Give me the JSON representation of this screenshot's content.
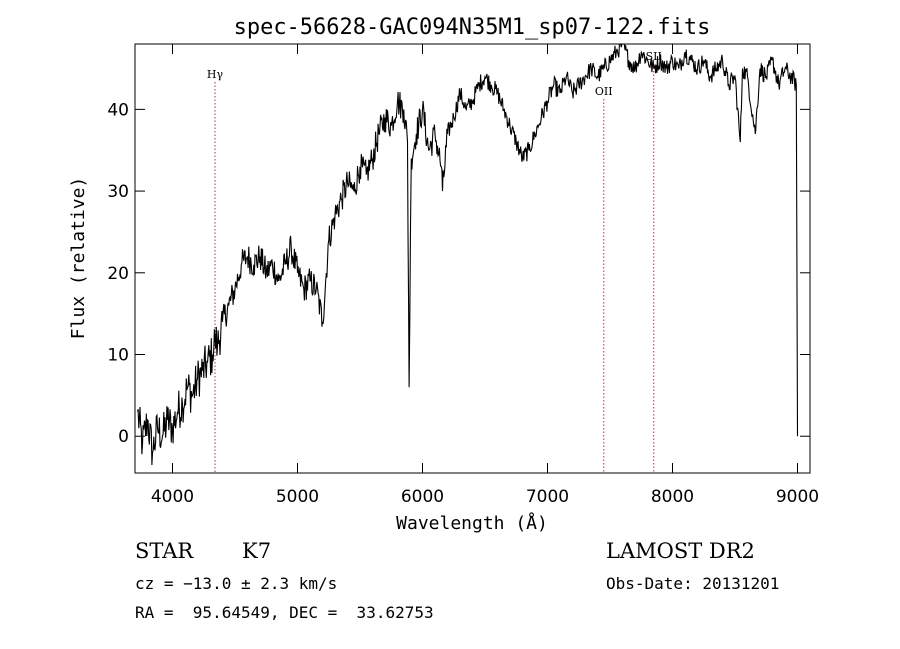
{
  "chart_data": {
    "type": "line",
    "title": "spec-56628-GAC094N35M1_sp07-122.fits",
    "xlabel": "Wavelength (Å)",
    "ylabel": "Flux (relative)",
    "xlim": [
      3700,
      9100
    ],
    "ylim": [
      -4.5,
      48
    ],
    "x_ticks": [
      4000,
      5000,
      6000,
      7000,
      8000,
      9000
    ],
    "y_ticks": [
      0,
      10,
      20,
      30,
      40
    ],
    "grid": false,
    "spectral_lines": [
      {
        "name": "Hγ",
        "wavelength": 4340
      },
      {
        "name": "OII",
        "wavelength": 7450
      },
      {
        "name": "SII",
        "wavelength": 7850
      }
    ],
    "series": [
      {
        "x": [
          3720,
          3760,
          3800,
          3840,
          3880,
          3920,
          3960,
          4000,
          4040,
          4080,
          4120,
          4160,
          4200,
          4240,
          4280,
          4320,
          4340,
          4360,
          4400,
          4450,
          4500,
          4550,
          4600,
          4650,
          4700,
          4750,
          4800,
          4850,
          4900,
          4950,
          5000,
          5050,
          5100,
          5150,
          5200,
          5250,
          5300,
          5350,
          5400,
          5450,
          5500,
          5550,
          5600,
          5650,
          5700,
          5750,
          5800,
          5850,
          5880,
          5893,
          5910,
          5950,
          6000,
          6050,
          6100,
          6150,
          6160,
          6200,
          6250,
          6300,
          6350,
          6400,
          6450,
          6500,
          6550,
          6600,
          6650,
          6700,
          6750,
          6800,
          6850,
          6900,
          6950,
          7000,
          7050,
          7100,
          7150,
          7200,
          7250,
          7300,
          7350,
          7400,
          7450,
          7500,
          7550,
          7600,
          7650,
          7700,
          7750,
          7800,
          7850,
          7900,
          7950,
          8000,
          8050,
          8100,
          8150,
          8200,
          8250,
          8300,
          8350,
          8400,
          8450,
          8500,
          8542,
          8560,
          8600,
          8662,
          8700,
          8750,
          8800,
          8850,
          8900,
          8950,
          8990,
          9000
        ],
        "y": [
          3,
          -1,
          2,
          -2,
          1,
          0,
          2,
          1,
          3,
          4,
          6,
          5,
          7,
          8,
          9,
          10,
          12,
          11,
          14,
          16,
          18,
          21,
          22,
          21,
          22,
          20,
          21,
          19,
          21,
          23,
          20,
          18,
          19,
          18,
          14,
          24,
          27,
          29,
          31,
          30,
          33,
          32,
          34,
          37,
          39,
          38,
          41,
          40,
          36,
          6,
          34,
          37,
          40,
          35,
          37,
          33,
          30,
          37,
          39,
          42,
          40,
          41,
          43,
          44,
          43,
          42,
          40,
          38,
          36,
          34,
          35,
          37,
          39,
          41,
          43,
          42,
          44,
          42,
          43,
          44,
          45,
          44,
          45,
          46,
          47,
          48,
          46,
          45,
          47,
          46,
          45,
          46,
          45,
          46,
          45,
          47,
          46,
          45,
          46,
          44,
          45,
          46,
          43,
          44,
          36,
          45,
          44,
          37,
          45,
          44,
          46,
          43,
          45,
          44,
          43,
          0
        ]
      }
    ]
  },
  "info": {
    "object_class": "STAR",
    "subclass": "K7",
    "redshift": "cz = −13.0 ± 2.3 km/s",
    "coords": "RA =  95.64549, DEC =  33.62753",
    "survey": "LAMOST DR2",
    "obs_date": "Obs-Date: 20131201"
  }
}
